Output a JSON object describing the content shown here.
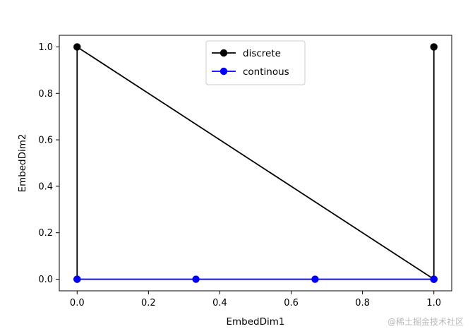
{
  "chart_data": {
    "type": "line",
    "title": "",
    "xlabel": "EmbedDim1",
    "ylabel": "EmbedDim2",
    "xlim": [
      -0.05,
      1.05
    ],
    "ylim": [
      -0.05,
      1.05
    ],
    "xticks": [
      0.0,
      0.2,
      0.4,
      0.6,
      0.8,
      1.0
    ],
    "yticks": [
      0.0,
      0.2,
      0.4,
      0.6,
      0.8,
      1.0
    ],
    "xtick_labels": [
      "0.0",
      "0.2",
      "0.4",
      "0.6",
      "0.8",
      "1.0"
    ],
    "ytick_labels": [
      "0.0",
      "0.2",
      "0.4",
      "0.6",
      "0.8",
      "1.0"
    ],
    "grid": false,
    "legend_position": "upper center",
    "series": [
      {
        "name": "discrete",
        "color": "#000000",
        "marker": "circle",
        "x": [
          0.0,
          0.0,
          1.0,
          1.0,
          1.0
        ],
        "y": [
          0.0,
          1.0,
          0.0,
          1.0,
          0.0
        ]
      },
      {
        "name": "continous",
        "color": "#0000ff",
        "marker": "circle",
        "x": [
          0.0,
          0.333,
          0.667,
          1.0
        ],
        "y": [
          0.0,
          0.0,
          0.0,
          0.0
        ]
      }
    ]
  },
  "watermark": "@稀土掘金技术社区"
}
